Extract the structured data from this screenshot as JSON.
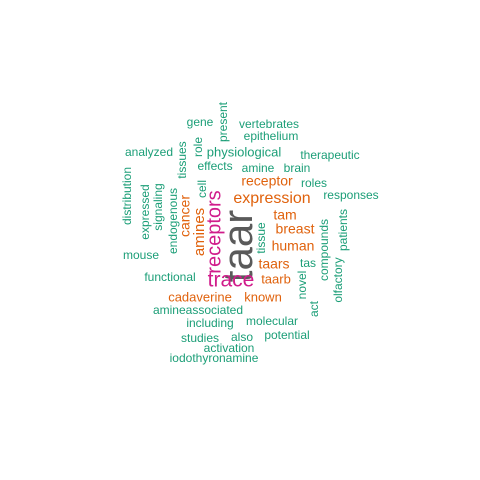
{
  "colors": {
    "large": "#5a5a5a",
    "primary": "#d01c8b",
    "secondary": "#e0620d",
    "tertiary": "#1b9e77"
  },
  "words": [
    {
      "text": "taar",
      "color": "large"
    },
    {
      "text": "trace",
      "color": "primary"
    },
    {
      "text": "receptors",
      "color": "primary"
    },
    {
      "text": "expression",
      "color": "secondary"
    },
    {
      "text": "amines",
      "color": "secondary"
    },
    {
      "text": "receptor",
      "color": "secondary"
    },
    {
      "text": "human",
      "color": "secondary"
    },
    {
      "text": "breast",
      "color": "secondary"
    },
    {
      "text": "tam",
      "color": "secondary"
    },
    {
      "text": "taars",
      "color": "secondary"
    },
    {
      "text": "cancer",
      "color": "secondary"
    },
    {
      "text": "cadaverine",
      "color": "secondary"
    },
    {
      "text": "known",
      "color": "secondary"
    },
    {
      "text": "taarb",
      "color": "secondary"
    },
    {
      "text": "physiological",
      "color": "tertiary"
    },
    {
      "text": "vertebrates",
      "color": "tertiary"
    },
    {
      "text": "gene",
      "color": "tertiary"
    },
    {
      "text": "present",
      "color": "tertiary"
    },
    {
      "text": "epithelium",
      "color": "tertiary"
    },
    {
      "text": "analyzed",
      "color": "tertiary"
    },
    {
      "text": "tissues",
      "color": "tertiary"
    },
    {
      "text": "role",
      "color": "tertiary"
    },
    {
      "text": "therapeutic",
      "color": "tertiary"
    },
    {
      "text": "effects",
      "color": "tertiary"
    },
    {
      "text": "amine",
      "color": "tertiary"
    },
    {
      "text": "brain",
      "color": "tertiary"
    },
    {
      "text": "distribution",
      "color": "tertiary"
    },
    {
      "text": "expressed",
      "color": "tertiary"
    },
    {
      "text": "signaling",
      "color": "tertiary"
    },
    {
      "text": "endogenous",
      "color": "tertiary"
    },
    {
      "text": "cell",
      "color": "tertiary"
    },
    {
      "text": "roles",
      "color": "tertiary"
    },
    {
      "text": "responses",
      "color": "tertiary"
    },
    {
      "text": "tissue",
      "color": "tertiary"
    },
    {
      "text": "compounds",
      "color": "tertiary"
    },
    {
      "text": "patients",
      "color": "tertiary"
    },
    {
      "text": "mouse",
      "color": "tertiary"
    },
    {
      "text": "tas",
      "color": "tertiary"
    },
    {
      "text": "functional",
      "color": "tertiary"
    },
    {
      "text": "novel",
      "color": "tertiary"
    },
    {
      "text": "olfactory",
      "color": "tertiary"
    },
    {
      "text": "act",
      "color": "tertiary"
    },
    {
      "text": "amineassociated",
      "color": "tertiary"
    },
    {
      "text": "including",
      "color": "tertiary"
    },
    {
      "text": "molecular",
      "color": "tertiary"
    },
    {
      "text": "studies",
      "color": "tertiary"
    },
    {
      "text": "also",
      "color": "tertiary"
    },
    {
      "text": "potential",
      "color": "tertiary"
    },
    {
      "text": "activation",
      "color": "tertiary"
    },
    {
      "text": "iodothyronamine",
      "color": "tertiary"
    }
  ]
}
